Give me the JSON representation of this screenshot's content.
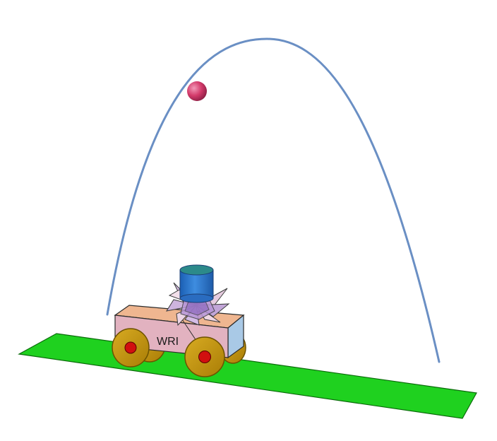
{
  "scene": {
    "cart_label": "WRI",
    "colors": {
      "ground": "#1fd11f",
      "trajectory": "#6a8fc4",
      "ball": "#d33a6a",
      "cart_body_front": "#e2b2c0",
      "cart_body_top": "#efb690",
      "cart_body_side": "#a9c9e6",
      "wheel_outer": "#c99a12",
      "wheel_hub": "#d10f0f",
      "launcher_cylinder": "#2f78d0",
      "launcher_star": "#d9c0e8"
    }
  }
}
